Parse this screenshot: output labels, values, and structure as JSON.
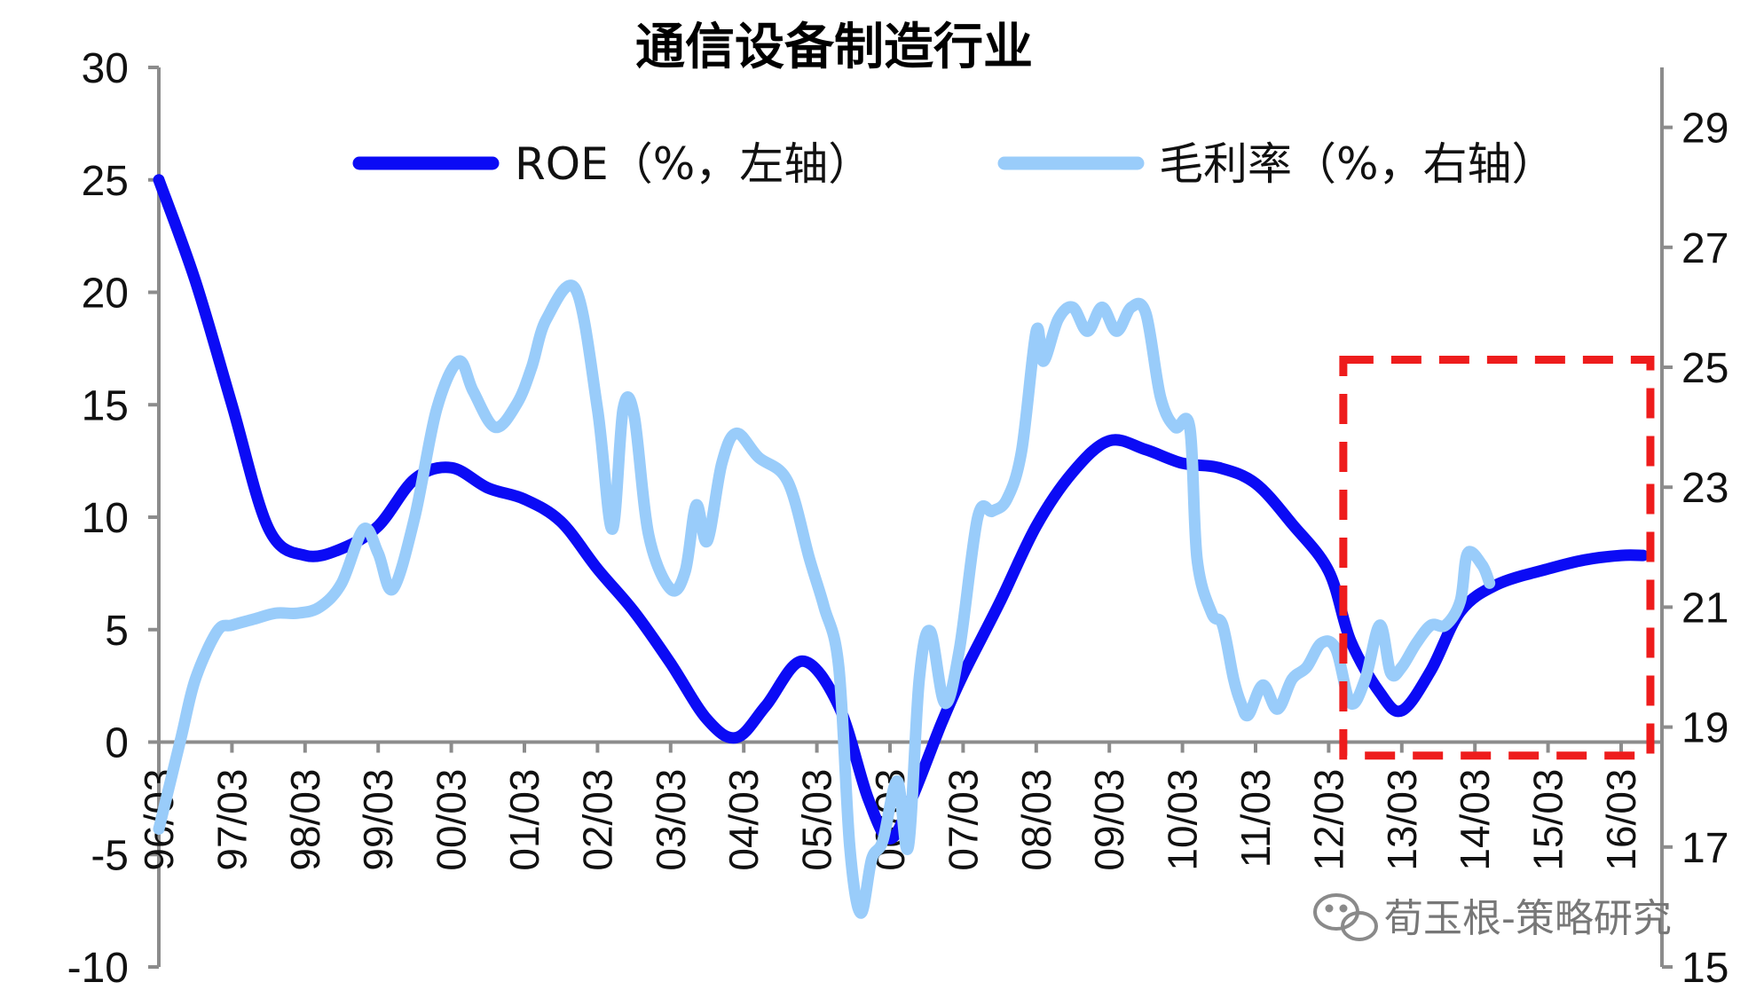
{
  "chart_data": {
    "type": "line",
    "title": "通信设备制造行业",
    "x_labels": [
      "96/03",
      "97/03",
      "98/03",
      "99/03",
      "00/03",
      "01/03",
      "02/03",
      "03/03",
      "04/03",
      "05/03",
      "06/03",
      "07/03",
      "08/03",
      "09/03",
      "10/03",
      "11/03",
      "12/03",
      "13/03",
      "14/03",
      "15/03",
      "16/03"
    ],
    "y_left": {
      "min": -10,
      "max": 30,
      "ticks": [
        "30",
        "25",
        "20",
        "15",
        "10",
        "5",
        "0",
        "-5",
        "-10"
      ]
    },
    "y_right": {
      "min": 15,
      "max": 30,
      "ticks": [
        "29",
        "27",
        "25",
        "23",
        "21",
        "19",
        "17",
        "15"
      ]
    },
    "series": [
      {
        "name": "ROE（%，左轴）",
        "axis": "left",
        "color": "#0b0bf5",
        "points": [
          [
            0,
            25
          ],
          [
            0.5,
            20.5
          ],
          [
            1.0,
            15
          ],
          [
            1.5,
            9.5
          ],
          [
            2.0,
            8.3
          ],
          [
            2.5,
            8.6
          ],
          [
            3.0,
            9.6
          ],
          [
            3.5,
            11.7
          ],
          [
            4.0,
            12.2
          ],
          [
            4.5,
            11.3
          ],
          [
            5.0,
            10.8
          ],
          [
            5.5,
            9.8
          ],
          [
            6.0,
            7.7
          ],
          [
            6.5,
            5.8
          ],
          [
            7.0,
            3.5
          ],
          [
            7.5,
            1.0
          ],
          [
            7.9,
            0.2
          ],
          [
            8.3,
            1.6
          ],
          [
            8.8,
            3.6
          ],
          [
            9.3,
            1.6
          ],
          [
            9.7,
            -2.5
          ],
          [
            10.0,
            -4.3
          ],
          [
            10.3,
            -2.5
          ],
          [
            10.7,
            0.8
          ],
          [
            11.0,
            3.0
          ],
          [
            11.5,
            6.2
          ],
          [
            12.0,
            9.6
          ],
          [
            12.5,
            12.0
          ],
          [
            13.0,
            13.4
          ],
          [
            13.5,
            13.0
          ],
          [
            14.0,
            12.4
          ],
          [
            14.5,
            12.2
          ],
          [
            15.0,
            11.5
          ],
          [
            15.5,
            9.7
          ],
          [
            16.0,
            7.6
          ],
          [
            16.3,
            4.5
          ],
          [
            16.7,
            2.2
          ],
          [
            17.0,
            1.4
          ],
          [
            17.4,
            3.2
          ],
          [
            17.8,
            5.8
          ],
          [
            18.3,
            7.0
          ],
          [
            19.0,
            7.7
          ],
          [
            19.5,
            8.1
          ],
          [
            20.0,
            8.3
          ],
          [
            20.3,
            8.3
          ]
        ]
      },
      {
        "name": "毛利率（%，右轴）",
        "axis": "right",
        "color": "#99ccfa",
        "points": [
          [
            0,
            17.3
          ],
          [
            0.3,
            18.8
          ],
          [
            0.5,
            19.8
          ],
          [
            0.8,
            20.6
          ],
          [
            1.0,
            20.7
          ],
          [
            1.3,
            20.8
          ],
          [
            1.6,
            20.9
          ],
          [
            1.9,
            20.9
          ],
          [
            2.2,
            21.0
          ],
          [
            2.5,
            21.4
          ],
          [
            2.8,
            22.3
          ],
          [
            3.0,
            21.9
          ],
          [
            3.2,
            21.3
          ],
          [
            3.5,
            22.5
          ],
          [
            3.8,
            24.3
          ],
          [
            4.1,
            25.1
          ],
          [
            4.3,
            24.6
          ],
          [
            4.6,
            24.0
          ],
          [
            4.9,
            24.4
          ],
          [
            5.1,
            25.0
          ],
          [
            5.3,
            25.8
          ],
          [
            5.7,
            26.3
          ],
          [
            6.0,
            24.3
          ],
          [
            6.2,
            22.3
          ],
          [
            6.35,
            24.3
          ],
          [
            6.5,
            24.2
          ],
          [
            6.7,
            22.2
          ],
          [
            7.0,
            21.3
          ],
          [
            7.2,
            21.6
          ],
          [
            7.35,
            22.7
          ],
          [
            7.5,
            22.1
          ],
          [
            7.7,
            23.4
          ],
          [
            7.9,
            23.9
          ],
          [
            8.2,
            23.5
          ],
          [
            8.6,
            23.1
          ],
          [
            8.9,
            21.8
          ],
          [
            9.1,
            21.0
          ],
          [
            9.3,
            20.0
          ],
          [
            9.45,
            17.0
          ],
          [
            9.6,
            15.9
          ],
          [
            9.75,
            16.8
          ],
          [
            9.9,
            17.1
          ],
          [
            10.1,
            18.1
          ],
          [
            10.25,
            17.0
          ],
          [
            10.4,
            19.8
          ],
          [
            10.55,
            20.6
          ],
          [
            10.75,
            19.4
          ],
          [
            10.95,
            20.3
          ],
          [
            11.2,
            22.5
          ],
          [
            11.4,
            22.6
          ],
          [
            11.6,
            22.8
          ],
          [
            11.8,
            23.6
          ],
          [
            12.0,
            25.6
          ],
          [
            12.1,
            25.1
          ],
          [
            12.3,
            25.8
          ],
          [
            12.5,
            26.0
          ],
          [
            12.7,
            25.6
          ],
          [
            12.9,
            26.0
          ],
          [
            13.1,
            25.6
          ],
          [
            13.3,
            26.0
          ],
          [
            13.5,
            25.9
          ],
          [
            13.7,
            24.5
          ],
          [
            13.9,
            24.0
          ],
          [
            14.1,
            24.0
          ],
          [
            14.2,
            21.8
          ],
          [
            14.4,
            20.9
          ],
          [
            14.55,
            20.7
          ],
          [
            14.7,
            19.8
          ],
          [
            14.8,
            19.4
          ],
          [
            14.9,
            19.2
          ],
          [
            15.1,
            19.7
          ],
          [
            15.3,
            19.3
          ],
          [
            15.5,
            19.8
          ],
          [
            15.7,
            20.0
          ],
          [
            15.9,
            20.4
          ],
          [
            16.1,
            20.3
          ],
          [
            16.3,
            19.4
          ],
          [
            16.5,
            19.8
          ],
          [
            16.7,
            20.7
          ],
          [
            16.85,
            19.9
          ],
          [
            17.0,
            20.0
          ],
          [
            17.2,
            20.4
          ],
          [
            17.4,
            20.7
          ],
          [
            17.6,
            20.7
          ],
          [
            17.8,
            21.1
          ],
          [
            17.9,
            21.9
          ],
          [
            18.1,
            21.7
          ],
          [
            18.2,
            21.4
          ]
        ]
      }
    ],
    "legend": [
      {
        "label": "ROE（%，左轴）",
        "color": "#0b0bf5"
      },
      {
        "label": "毛利率（%，右轴）",
        "color": "#99ccfa"
      }
    ],
    "highlight_box": {
      "color": "#ee1c1c",
      "x_range": [
        16.2,
        20.4
      ],
      "y_left_range": [
        -0.6,
        17
      ]
    },
    "watermark": "荀玉根-策略研究"
  }
}
